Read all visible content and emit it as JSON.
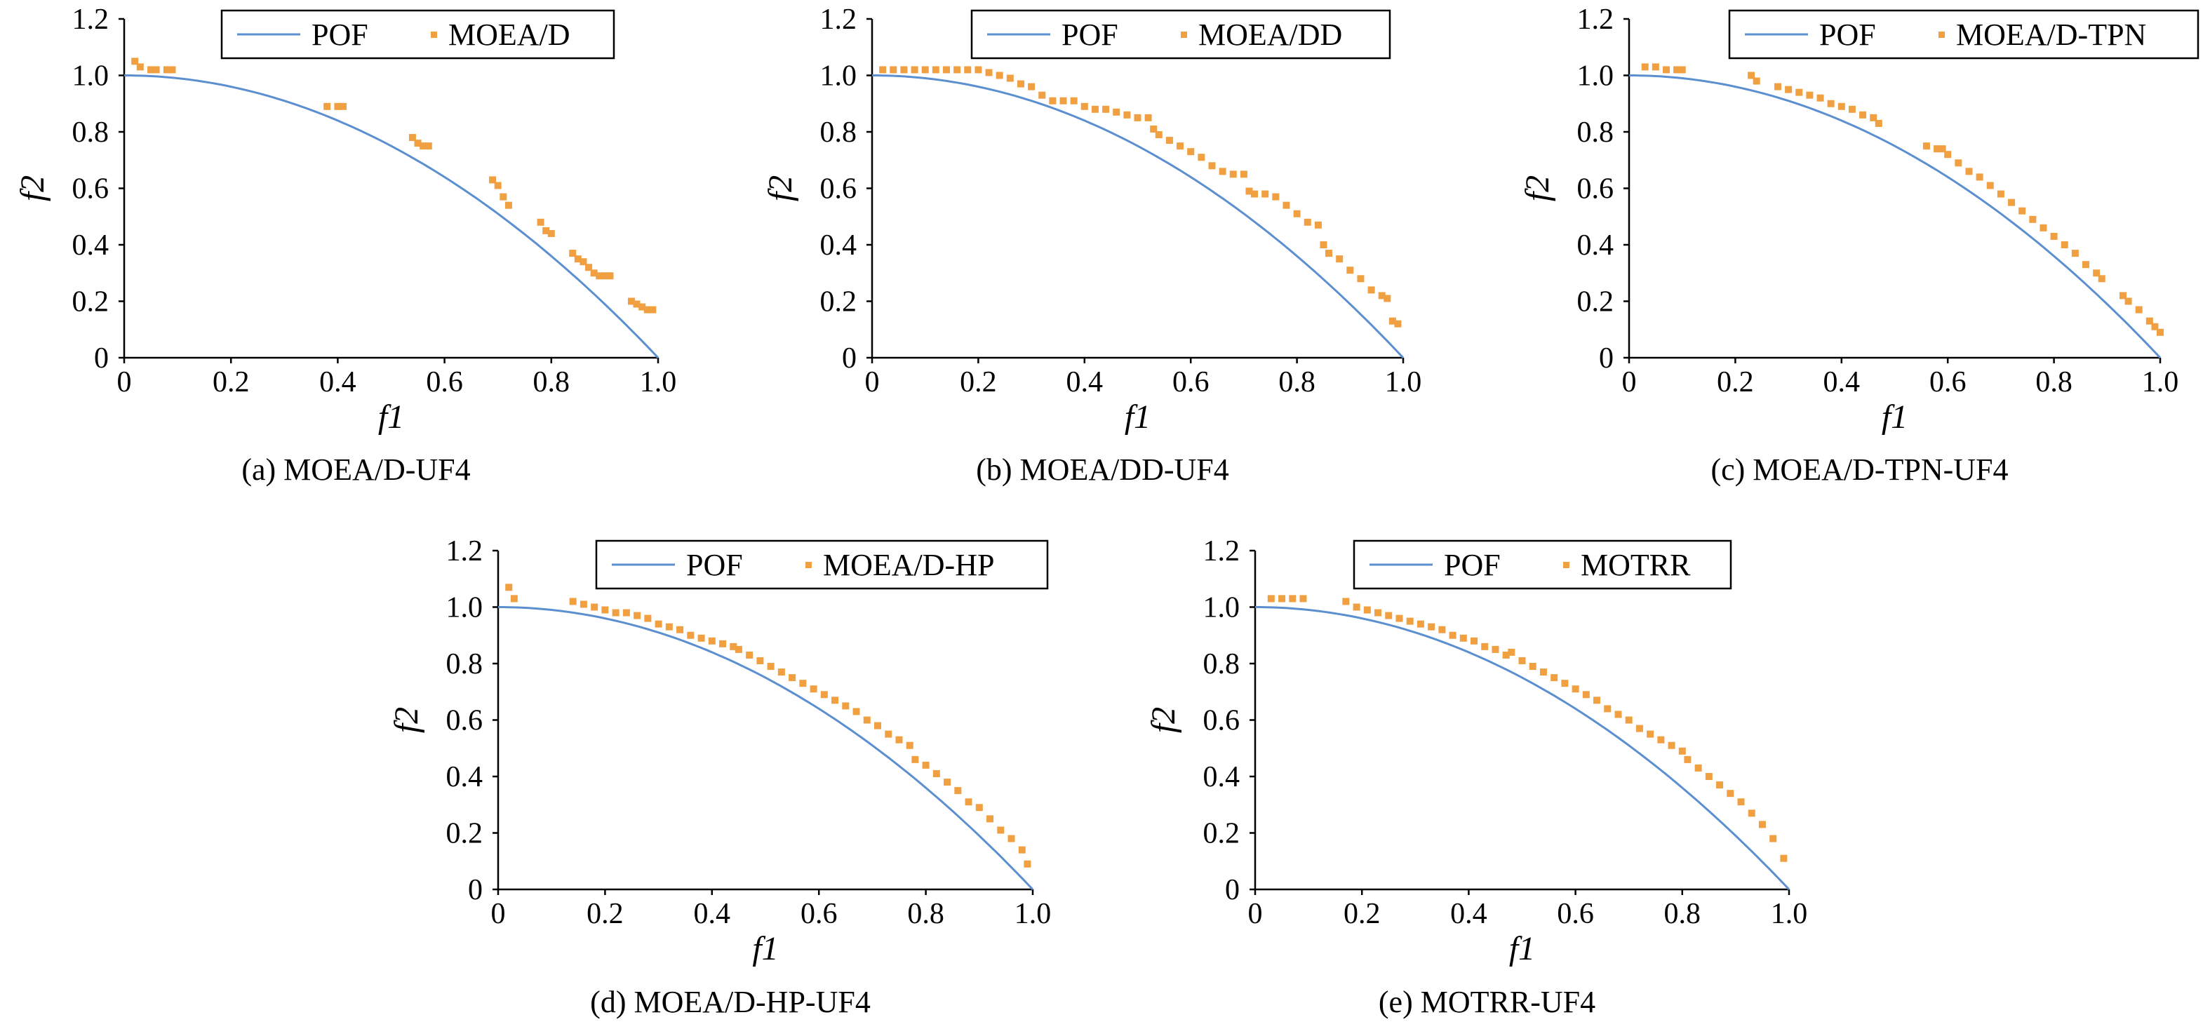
{
  "chart_data": [
    {
      "type": "scatter",
      "title": "(a) MOEA/D-UF4",
      "xlabel": "f1",
      "ylabel": "f2",
      "xlim": [
        0,
        1.0
      ],
      "ylim": [
        0,
        1.2
      ],
      "xticks": [
        "0",
        "0.2",
        "0.4",
        "0.6",
        "0.8",
        "1.0"
      ],
      "yticks": [
        "0",
        "0.2",
        "0.4",
        "0.6",
        "0.8",
        "1.0",
        "1.2"
      ],
      "legend": "top-right",
      "series": [
        {
          "name": "POF",
          "kind": "line",
          "curve": "f2 = 1 - f1^2",
          "color": "#5b8fd0"
        },
        {
          "name": "MOEA/D",
          "kind": "points",
          "color": "#f0a040",
          "x": [
            0.02,
            0.03,
            0.05,
            0.06,
            0.08,
            0.09,
            0.38,
            0.4,
            0.41,
            0.54,
            0.55,
            0.56,
            0.57,
            0.69,
            0.7,
            0.71,
            0.72,
            0.78,
            0.79,
            0.8,
            0.84,
            0.85,
            0.86,
            0.87,
            0.88,
            0.89,
            0.9,
            0.91,
            0.95,
            0.96,
            0.97,
            0.98,
            0.99
          ],
          "y": [
            1.05,
            1.03,
            1.02,
            1.02,
            1.02,
            1.02,
            0.89,
            0.89,
            0.89,
            0.78,
            0.76,
            0.75,
            0.75,
            0.63,
            0.61,
            0.57,
            0.54,
            0.48,
            0.45,
            0.44,
            0.37,
            0.35,
            0.34,
            0.32,
            0.3,
            0.29,
            0.29,
            0.29,
            0.2,
            0.19,
            0.18,
            0.17,
            0.17
          ]
        }
      ]
    },
    {
      "type": "scatter",
      "title": "(b) MOEA/DD-UF4",
      "xlabel": "f1",
      "ylabel": "f2",
      "xlim": [
        0,
        1.0
      ],
      "ylim": [
        0,
        1.2
      ],
      "xticks": [
        "0",
        "0.2",
        "0.4",
        "0.6",
        "0.8",
        "1.0"
      ],
      "yticks": [
        "0",
        "0.2",
        "0.4",
        "0.6",
        "0.8",
        "1.0",
        "1.2"
      ],
      "legend": "top-right",
      "series": [
        {
          "name": "POF",
          "kind": "line",
          "curve": "f2 = 1 - f1^2",
          "color": "#5b8fd0"
        },
        {
          "name": "MOEA/DD",
          "kind": "points",
          "color": "#f0a040",
          "x": [
            0.02,
            0.04,
            0.06,
            0.08,
            0.1,
            0.12,
            0.14,
            0.16,
            0.18,
            0.2,
            0.22,
            0.24,
            0.26,
            0.28,
            0.3,
            0.32,
            0.34,
            0.36,
            0.38,
            0.4,
            0.42,
            0.44,
            0.46,
            0.48,
            0.5,
            0.52,
            0.53,
            0.54,
            0.56,
            0.58,
            0.6,
            0.62,
            0.64,
            0.66,
            0.68,
            0.7,
            0.71,
            0.72,
            0.74,
            0.76,
            0.78,
            0.8,
            0.82,
            0.84,
            0.85,
            0.86,
            0.88,
            0.9,
            0.92,
            0.94,
            0.96,
            0.97,
            0.98,
            0.99
          ],
          "y": [
            1.02,
            1.02,
            1.02,
            1.02,
            1.02,
            1.02,
            1.02,
            1.02,
            1.02,
            1.02,
            1.01,
            1.0,
            0.99,
            0.97,
            0.96,
            0.93,
            0.91,
            0.91,
            0.91,
            0.89,
            0.88,
            0.88,
            0.87,
            0.86,
            0.85,
            0.85,
            0.81,
            0.79,
            0.77,
            0.75,
            0.73,
            0.71,
            0.68,
            0.66,
            0.65,
            0.65,
            0.59,
            0.58,
            0.58,
            0.57,
            0.54,
            0.51,
            0.48,
            0.47,
            0.4,
            0.37,
            0.35,
            0.31,
            0.28,
            0.24,
            0.22,
            0.21,
            0.13,
            0.12
          ]
        }
      ]
    },
    {
      "type": "scatter",
      "title": "(c) MOEA/D-TPN-UF4",
      "xlabel": "f1",
      "ylabel": "f2",
      "xlim": [
        0,
        1.0
      ],
      "ylim": [
        0,
        1.2
      ],
      "xticks": [
        "0",
        "0.2",
        "0.4",
        "0.6",
        "0.8",
        "1.0"
      ],
      "yticks": [
        "0",
        "0.2",
        "0.4",
        "0.6",
        "0.8",
        "1.0",
        "1.2"
      ],
      "legend": "top-right",
      "series": [
        {
          "name": "POF",
          "kind": "line",
          "curve": "f2 = 1 - f1^2",
          "color": "#5b8fd0"
        },
        {
          "name": "MOEA/D-TPN",
          "kind": "points",
          "color": "#f0a040",
          "x": [
            0.03,
            0.05,
            0.07,
            0.09,
            0.1,
            0.23,
            0.24,
            0.28,
            0.3,
            0.32,
            0.34,
            0.36,
            0.38,
            0.4,
            0.42,
            0.44,
            0.46,
            0.47,
            0.56,
            0.58,
            0.59,
            0.6,
            0.62,
            0.64,
            0.66,
            0.68,
            0.7,
            0.72,
            0.74,
            0.76,
            0.78,
            0.8,
            0.82,
            0.84,
            0.86,
            0.88,
            0.89,
            0.93,
            0.94,
            0.96,
            0.98,
            0.99,
            1.0
          ],
          "y": [
            1.03,
            1.03,
            1.02,
            1.02,
            1.02,
            1.0,
            0.98,
            0.96,
            0.95,
            0.94,
            0.93,
            0.92,
            0.9,
            0.89,
            0.88,
            0.86,
            0.85,
            0.83,
            0.75,
            0.74,
            0.74,
            0.72,
            0.69,
            0.66,
            0.64,
            0.61,
            0.58,
            0.55,
            0.52,
            0.49,
            0.46,
            0.43,
            0.4,
            0.37,
            0.33,
            0.3,
            0.28,
            0.22,
            0.2,
            0.17,
            0.13,
            0.11,
            0.09
          ]
        }
      ]
    },
    {
      "type": "scatter",
      "title": "(d) MOEA/D-HP-UF4",
      "xlabel": "f1",
      "ylabel": "f2",
      "xlim": [
        0,
        1.0
      ],
      "ylim": [
        0,
        1.2
      ],
      "xticks": [
        "0",
        "0.2",
        "0.4",
        "0.6",
        "0.8",
        "1.0"
      ],
      "yticks": [
        "0",
        "0.2",
        "0.4",
        "0.6",
        "0.8",
        "1.0",
        "1.2"
      ],
      "legend": "top-right",
      "series": [
        {
          "name": "POF",
          "kind": "line",
          "curve": "f2 = 1 - f1^2",
          "color": "#5b8fd0"
        },
        {
          "name": "MOEA/D-HP",
          "kind": "points",
          "color": "#f0a040",
          "x": [
            0.02,
            0.03,
            0.14,
            0.16,
            0.18,
            0.2,
            0.22,
            0.24,
            0.26,
            0.28,
            0.3,
            0.32,
            0.34,
            0.36,
            0.38,
            0.4,
            0.42,
            0.44,
            0.45,
            0.47,
            0.49,
            0.51,
            0.53,
            0.55,
            0.57,
            0.59,
            0.61,
            0.63,
            0.65,
            0.67,
            0.69,
            0.71,
            0.73,
            0.75,
            0.77,
            0.78,
            0.8,
            0.82,
            0.84,
            0.86,
            0.88,
            0.9,
            0.92,
            0.94,
            0.96,
            0.98,
            0.99
          ],
          "y": [
            1.07,
            1.03,
            1.02,
            1.01,
            1.0,
            0.99,
            0.98,
            0.98,
            0.97,
            0.96,
            0.94,
            0.93,
            0.92,
            0.9,
            0.89,
            0.88,
            0.87,
            0.86,
            0.85,
            0.83,
            0.81,
            0.79,
            0.77,
            0.75,
            0.73,
            0.71,
            0.69,
            0.67,
            0.65,
            0.63,
            0.6,
            0.58,
            0.55,
            0.53,
            0.51,
            0.46,
            0.44,
            0.41,
            0.38,
            0.35,
            0.31,
            0.29,
            0.25,
            0.21,
            0.18,
            0.14,
            0.09
          ]
        }
      ]
    },
    {
      "type": "scatter",
      "title": "(e) MOTRR-UF4",
      "xlabel": "f1",
      "ylabel": "f2",
      "xlim": [
        0,
        1.0
      ],
      "ylim": [
        0,
        1.2
      ],
      "xticks": [
        "0",
        "0.2",
        "0.4",
        "0.6",
        "0.8",
        "1.0"
      ],
      "yticks": [
        "0",
        "0.2",
        "0.4",
        "0.6",
        "0.8",
        "1.0",
        "1.2"
      ],
      "legend": "top-right",
      "series": [
        {
          "name": "POF",
          "kind": "line",
          "curve": "f2 = 1 - f1^2",
          "color": "#5b8fd0"
        },
        {
          "name": "MOTRR",
          "kind": "points",
          "color": "#f0a040",
          "x": [
            0.03,
            0.05,
            0.07,
            0.09,
            0.17,
            0.19,
            0.21,
            0.23,
            0.25,
            0.27,
            0.29,
            0.31,
            0.33,
            0.35,
            0.37,
            0.39,
            0.41,
            0.43,
            0.45,
            0.47,
            0.48,
            0.5,
            0.52,
            0.54,
            0.56,
            0.58,
            0.6,
            0.62,
            0.64,
            0.66,
            0.68,
            0.7,
            0.72,
            0.74,
            0.76,
            0.78,
            0.8,
            0.81,
            0.83,
            0.85,
            0.87,
            0.89,
            0.91,
            0.93,
            0.95,
            0.97,
            0.99
          ],
          "y": [
            1.03,
            1.03,
            1.03,
            1.03,
            1.02,
            1.0,
            0.99,
            0.98,
            0.97,
            0.96,
            0.95,
            0.94,
            0.93,
            0.92,
            0.9,
            0.89,
            0.88,
            0.86,
            0.85,
            0.83,
            0.84,
            0.81,
            0.79,
            0.77,
            0.75,
            0.73,
            0.71,
            0.69,
            0.67,
            0.64,
            0.62,
            0.6,
            0.57,
            0.55,
            0.53,
            0.51,
            0.49,
            0.46,
            0.43,
            0.4,
            0.37,
            0.34,
            0.31,
            0.27,
            0.23,
            0.18,
            0.11
          ]
        }
      ]
    }
  ]
}
